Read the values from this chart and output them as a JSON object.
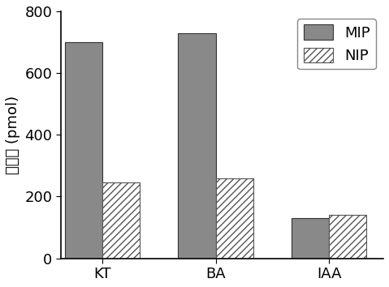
{
  "categories": [
    "KT",
    "BA",
    "IAA"
  ],
  "mip_values": [
    700,
    730,
    130
  ],
  "nip_values": [
    245,
    260,
    140
  ],
  "mip_color": "#898989",
  "nip_hatch": "////",
  "nip_facecolor": "#ffffff",
  "nip_edgecolor": "#555555",
  "bar_edgecolor": "#333333",
  "ylabel_chinese": "萌取量 (pmol)",
  "ylim": [
    0,
    800
  ],
  "yticks": [
    0,
    200,
    400,
    600,
    800
  ],
  "legend_labels": [
    "MIP",
    "NIP"
  ],
  "bar_width": 0.38,
  "x_positions": [
    0,
    1.15,
    2.3
  ],
  "tick_fontsize": 13,
  "label_fontsize": 13,
  "legend_fontsize": 13
}
